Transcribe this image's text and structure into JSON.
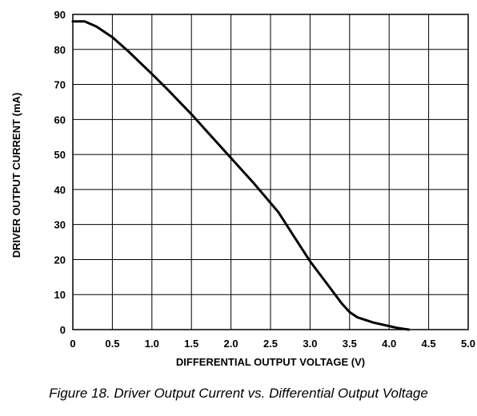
{
  "caption": "Figure 18. Driver Output Current vs. Differential Output Voltage",
  "chart_data": {
    "type": "line",
    "title": "",
    "xlabel": "DIFFERENTIAL OUTPUT VOLTAGE (V)",
    "ylabel": "DRIVER OUTPUT CURRENT (mA)",
    "xlim": [
      0,
      5.0
    ],
    "ylim": [
      0,
      90
    ],
    "x_ticks": [
      "0",
      "0.5",
      "1.0",
      "1.5",
      "2.0",
      "2.5",
      "3.0",
      "3.5",
      "4.0",
      "4.5",
      "5.0"
    ],
    "y_ticks": [
      "0",
      "10",
      "20",
      "30",
      "40",
      "50",
      "60",
      "70",
      "80",
      "90"
    ],
    "grid": true,
    "series": [
      {
        "color": "#000000",
        "x": [
          0,
          0.15,
          0.3,
          0.5,
          0.7,
          1.0,
          1.2,
          1.5,
          1.8,
          2.0,
          2.3,
          2.6,
          2.8,
          3.0,
          3.2,
          3.4,
          3.5,
          3.6,
          3.8,
          4.0,
          4.1,
          4.25
        ],
        "y": [
          88,
          88,
          86.5,
          83.5,
          79.5,
          73,
          68.5,
          61.5,
          54,
          49,
          41.5,
          33.5,
          26.5,
          19.5,
          13.5,
          7.5,
          5,
          3.5,
          2,
          1,
          0.5,
          0
        ]
      }
    ]
  }
}
